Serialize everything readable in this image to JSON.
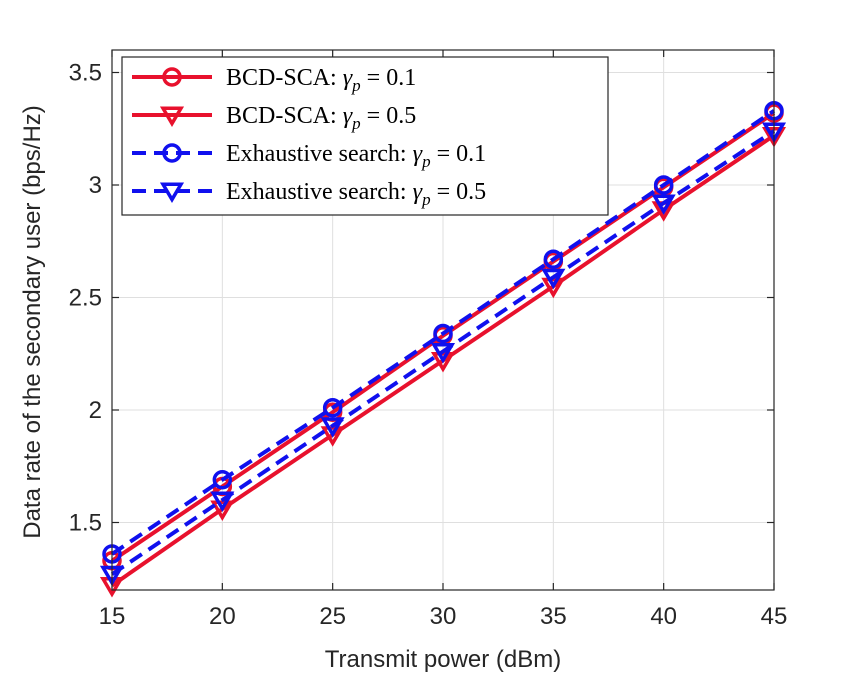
{
  "chart_data": {
    "type": "line",
    "title": "",
    "xlabel": "Transmit power (dBm)",
    "ylabel": "Data rate of the secondary user (bps/Hz)",
    "xlim": [
      15,
      45
    ],
    "ylim": [
      1.2,
      3.6
    ],
    "xticks": [
      15,
      20,
      25,
      30,
      35,
      40,
      45
    ],
    "yticks": [
      1.5,
      2,
      2.5,
      3,
      3.5
    ],
    "xtick_labels": [
      "15",
      "20",
      "25",
      "30",
      "35",
      "40",
      "45"
    ],
    "ytick_labels": [
      "1.5",
      "2",
      "2.5",
      "3",
      "3.5"
    ],
    "grid": true,
    "legend_position": "top-left",
    "x": [
      15,
      20,
      25,
      30,
      35,
      40,
      45
    ],
    "series": [
      {
        "name": "BCD-SCA: γp = 0.1",
        "legend_prefix": "BCD-SCA: ",
        "color": "#e8112d",
        "line_style": "solid",
        "marker": "circle",
        "values": [
          1.33,
          1.66,
          1.99,
          2.33,
          2.66,
          2.99,
          3.32
        ]
      },
      {
        "name": "BCD-SCA: γp = 0.5",
        "legend_prefix": "BCD-SCA: ",
        "color": "#e8112d",
        "line_style": "solid",
        "marker": "triangle-down",
        "values": [
          1.22,
          1.56,
          1.89,
          2.22,
          2.55,
          2.89,
          3.22
        ]
      },
      {
        "name": "Exhaustive search: γp = 0.1",
        "legend_prefix": "Exhaustive search: ",
        "color": "#1010ee",
        "line_style": "dashed",
        "marker": "circle",
        "values": [
          1.36,
          1.69,
          2.01,
          2.34,
          2.67,
          3.0,
          3.33
        ]
      },
      {
        "name": "Exhaustive search: γp = 0.5",
        "legend_prefix": "Exhaustive search: ",
        "color": "#1010ee",
        "line_style": "dashed",
        "marker": "triangle-down",
        "values": [
          1.27,
          1.6,
          1.93,
          2.26,
          2.59,
          2.92,
          3.24
        ]
      }
    ],
    "legend_symbol": "γ",
    "legend_subscript": "p",
    "legend_values": [
      "0.1",
      "0.5",
      "0.1",
      "0.5"
    ],
    "legend_equals": " = "
  }
}
